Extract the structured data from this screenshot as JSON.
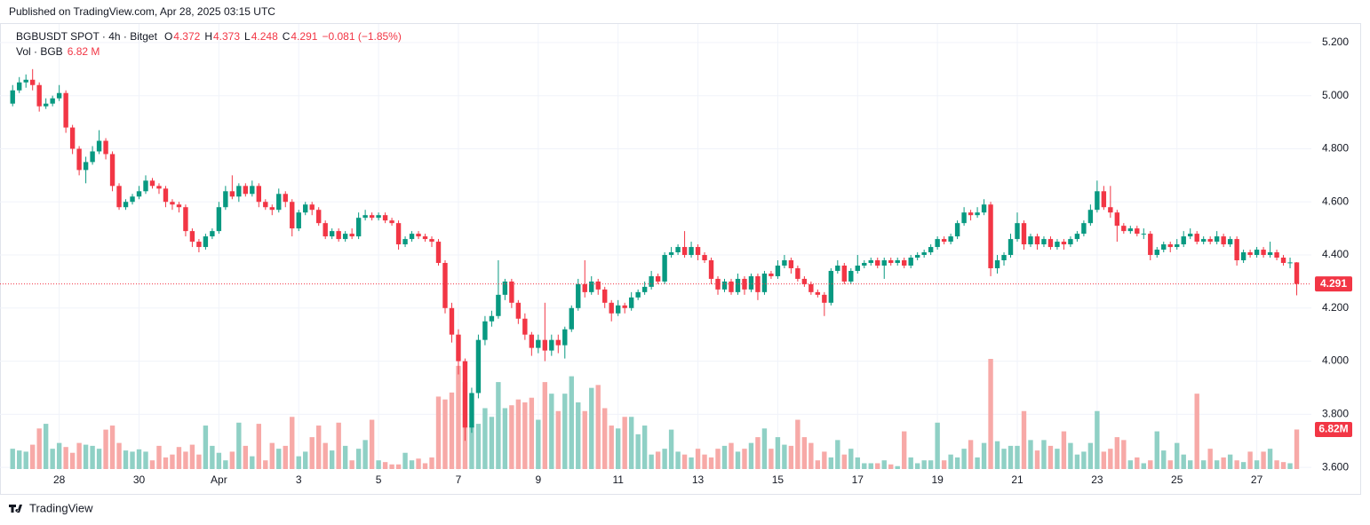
{
  "published": "Published on TradingView.com, Apr 28, 2025 03:15 UTC",
  "logo_text": "TradingView",
  "chart_data": {
    "type": "candlestick",
    "symbol": "BGBUSDT SPOT · 4h · Bitget",
    "ohlc_labels": [
      "O",
      "H",
      "L",
      "C"
    ],
    "change_label": "−0.081 (−1.85%)",
    "volume_title": "Vol · BGB",
    "volume_value_label": "6.82 M",
    "volume_axis_label": "6.82M",
    "last_price_label": "4.291",
    "up_color": "#089981",
    "down_color": "#f23645",
    "volume_up_color": "#8fd0c5",
    "volume_down_color": "#f7a9a7",
    "grid": true,
    "ylim": [
      3.5,
      5.27
    ],
    "yticks": [
      {
        "value": 3.6,
        "label": "3.600"
      },
      {
        "value": 3.8,
        "label": "3.800"
      },
      {
        "value": 4.0,
        "label": "4.000"
      },
      {
        "value": 4.2,
        "label": "4.200"
      },
      {
        "value": 4.4,
        "label": "4.400"
      },
      {
        "value": 4.6,
        "label": "4.600"
      },
      {
        "value": 4.8,
        "label": "4.800"
      },
      {
        "value": 5.0,
        "label": "5.000"
      },
      {
        "value": 5.2,
        "label": "5.200"
      }
    ],
    "xlim": [
      -1.9,
      195.2
    ],
    "xticks": [
      {
        "value": 7,
        "label": "28"
      },
      {
        "value": 19,
        "label": "30"
      },
      {
        "value": 31,
        "label": "Apr"
      },
      {
        "value": 43,
        "label": "3"
      },
      {
        "value": 55,
        "label": "5"
      },
      {
        "value": 67,
        "label": "7"
      },
      {
        "value": 79,
        "label": "9"
      },
      {
        "value": 91,
        "label": "11"
      },
      {
        "value": 103,
        "label": "13"
      },
      {
        "value": 115,
        "label": "15"
      },
      {
        "value": 127,
        "label": "17"
      },
      {
        "value": 139,
        "label": "19"
      },
      {
        "value": 151,
        "label": "21"
      },
      {
        "value": 163,
        "label": "23"
      },
      {
        "value": 175,
        "label": "25"
      },
      {
        "value": 187,
        "label": "27"
      }
    ],
    "open": [
      4.97,
      5.02,
      5.05,
      5.06,
      5.04,
      4.96,
      4.97,
      4.99,
      5.01,
      4.88,
      4.8,
      4.72,
      4.75,
      4.79,
      4.83,
      4.78,
      4.66,
      4.58,
      4.6,
      4.62,
      4.64,
      4.68,
      4.66,
      4.65,
      4.6,
      4.59,
      4.58,
      4.49,
      4.45,
      4.43,
      4.47,
      4.49,
      4.58,
      4.64,
      4.62,
      4.66,
      4.63,
      4.66,
      4.6,
      4.58,
      4.57,
      4.63,
      4.6,
      4.5,
      4.56,
      4.59,
      4.57,
      4.52,
      4.47,
      4.49,
      4.46,
      4.48,
      4.47,
      4.54,
      4.55,
      4.54,
      4.55,
      4.53,
      4.52,
      4.44,
      4.46,
      4.48,
      4.47,
      4.46,
      4.45,
      4.37,
      4.2,
      4.1,
      4.0,
      3.75,
      3.88,
      4.08,
      4.15,
      4.17,
      4.25,
      4.3,
      4.22,
      4.16,
      4.1,
      4.05,
      4.08,
      4.04,
      4.08,
      4.06,
      4.12,
      4.2,
      4.29,
      4.26,
      4.3,
      4.27,
      4.22,
      4.18,
      4.21,
      4.2,
      4.24,
      4.26,
      4.28,
      4.32,
      4.3,
      4.4,
      4.41,
      4.43,
      4.4,
      4.43,
      4.4,
      4.38,
      4.31,
      4.27,
      4.3,
      4.26,
      4.31,
      4.27,
      4.32,
      4.26,
      4.33,
      4.32,
      4.36,
      4.38,
      4.35,
      4.31,
      4.29,
      4.26,
      4.25,
      4.22,
      4.34,
      4.36,
      4.3,
      4.34,
      4.36,
      4.37,
      4.38,
      4.36,
      4.38,
      4.37,
      4.38,
      4.36,
      4.39,
      4.4,
      4.41,
      4.43,
      4.46,
      4.45,
      4.47,
      4.52,
      4.56,
      4.55,
      4.56,
      4.59,
      4.35,
      4.38,
      4.4,
      4.46,
      4.52,
      4.44,
      4.47,
      4.44,
      4.46,
      4.43,
      4.45,
      4.44,
      4.46,
      4.48,
      4.52,
      4.57,
      4.64,
      4.58,
      4.56,
      4.51,
      4.49,
      4.5,
      4.48,
      4.48,
      4.4,
      4.42,
      4.44,
      4.43,
      4.44,
      4.47,
      4.48,
      4.45,
      4.46,
      4.45,
      4.47,
      4.44,
      4.46,
      4.38,
      4.41,
      4.4,
      4.42,
      4.4,
      4.41,
      4.39,
      4.37,
      4.372
    ],
    "high": [
      5.04,
      5.07,
      5.08,
      5.1,
      5.05,
      4.99,
      5.0,
      5.04,
      5.02,
      4.89,
      4.81,
      4.77,
      4.81,
      4.87,
      4.84,
      4.79,
      4.67,
      4.61,
      4.63,
      4.66,
      4.7,
      4.69,
      4.67,
      4.66,
      4.61,
      4.6,
      4.59,
      4.5,
      4.46,
      4.48,
      4.5,
      4.6,
      4.66,
      4.7,
      4.67,
      4.67,
      4.68,
      4.67,
      4.61,
      4.59,
      4.65,
      4.64,
      4.61,
      4.57,
      4.6,
      4.6,
      4.58,
      4.53,
      4.5,
      4.5,
      4.49,
      4.5,
      4.56,
      4.57,
      4.56,
      4.56,
      4.56,
      4.54,
      4.53,
      4.47,
      4.49,
      4.49,
      4.48,
      4.47,
      4.46,
      4.38,
      4.22,
      4.12,
      4.01,
      3.9,
      4.1,
      4.17,
      4.19,
      4.38,
      4.31,
      4.31,
      4.23,
      4.18,
      4.11,
      4.1,
      4.22,
      4.1,
      4.1,
      4.13,
      4.21,
      4.31,
      4.38,
      4.32,
      4.31,
      4.28,
      4.23,
      4.23,
      4.22,
      4.26,
      4.27,
      4.3,
      4.34,
      4.33,
      4.41,
      4.43,
      4.44,
      4.49,
      4.45,
      4.44,
      4.41,
      4.39,
      4.32,
      4.31,
      4.31,
      4.33,
      4.32,
      4.33,
      4.33,
      4.34,
      4.34,
      4.38,
      4.4,
      4.39,
      4.36,
      4.32,
      4.3,
      4.27,
      4.26,
      4.35,
      4.38,
      4.37,
      4.35,
      4.4,
      4.38,
      4.39,
      4.39,
      4.39,
      4.39,
      4.39,
      4.39,
      4.4,
      4.41,
      4.42,
      4.44,
      4.47,
      4.47,
      4.48,
      4.53,
      4.58,
      4.57,
      4.58,
      4.61,
      4.6,
      4.4,
      4.41,
      4.48,
      4.56,
      4.53,
      4.48,
      4.48,
      4.47,
      4.47,
      4.46,
      4.46,
      4.47,
      4.49,
      4.53,
      4.59,
      4.68,
      4.66,
      4.66,
      4.57,
      4.52,
      4.51,
      4.51,
      4.5,
      4.49,
      4.43,
      4.45,
      4.45,
      4.46,
      4.49,
      4.5,
      4.49,
      4.47,
      4.47,
      4.49,
      4.48,
      4.47,
      4.47,
      4.42,
      4.42,
      4.43,
      4.43,
      4.45,
      4.42,
      4.4,
      4.39,
      4.373
    ],
    "low": [
      4.96,
      5.01,
      5.03,
      5.02,
      4.94,
      4.95,
      4.96,
      4.98,
      4.86,
      4.78,
      4.7,
      4.67,
      4.74,
      4.78,
      4.76,
      4.64,
      4.57,
      4.57,
      4.59,
      4.61,
      4.63,
      4.65,
      4.63,
      4.58,
      4.57,
      4.56,
      4.47,
      4.43,
      4.41,
      4.42,
      4.46,
      4.48,
      4.57,
      4.61,
      4.6,
      4.62,
      4.62,
      4.58,
      4.57,
      4.55,
      4.56,
      4.58,
      4.47,
      4.49,
      4.55,
      4.55,
      4.51,
      4.46,
      4.46,
      4.45,
      4.45,
      4.46,
      4.46,
      4.53,
      4.53,
      4.53,
      4.52,
      4.51,
      4.42,
      4.43,
      4.45,
      4.46,
      4.45,
      4.43,
      4.36,
      4.18,
      4.07,
      3.95,
      3.7,
      3.73,
      3.86,
      4.06,
      4.13,
      4.16,
      4.23,
      4.2,
      4.14,
      4.08,
      4.02,
      4.03,
      4.0,
      4.02,
      4.03,
      4.01,
      4.11,
      4.19,
      4.24,
      4.25,
      4.25,
      4.2,
      4.15,
      4.17,
      4.18,
      4.19,
      4.23,
      4.25,
      4.27,
      4.29,
      4.29,
      4.39,
      4.4,
      4.39,
      4.39,
      4.38,
      4.37,
      4.29,
      4.25,
      4.26,
      4.25,
      4.25,
      4.25,
      4.26,
      4.23,
      4.25,
      4.31,
      4.31,
      4.35,
      4.33,
      4.3,
      4.28,
      4.25,
      4.24,
      4.17,
      4.21,
      4.33,
      4.29,
      4.29,
      4.33,
      4.35,
      4.36,
      4.35,
      4.31,
      4.36,
      4.36,
      4.35,
      4.35,
      4.38,
      4.39,
      4.4,
      4.42,
      4.44,
      4.44,
      4.46,
      4.51,
      4.53,
      4.54,
      4.55,
      4.32,
      4.33,
      4.36,
      4.39,
      4.45,
      4.42,
      4.43,
      4.42,
      4.43,
      4.42,
      4.42,
      4.42,
      4.43,
      4.45,
      4.47,
      4.51,
      4.56,
      4.57,
      4.54,
      4.45,
      4.48,
      4.48,
      4.47,
      4.46,
      4.38,
      4.39,
      4.41,
      4.41,
      4.42,
      4.43,
      4.46,
      4.44,
      4.44,
      4.44,
      4.44,
      4.43,
      4.43,
      4.36,
      4.37,
      4.39,
      4.39,
      4.39,
      4.39,
      4.38,
      4.36,
      4.35,
      4.248
    ],
    "close": [
      5.02,
      5.05,
      5.06,
      5.04,
      4.96,
      4.97,
      4.99,
      5.01,
      4.88,
      4.8,
      4.72,
      4.75,
      4.79,
      4.83,
      4.78,
      4.66,
      4.58,
      4.6,
      4.62,
      4.64,
      4.68,
      4.66,
      4.65,
      4.6,
      4.59,
      4.58,
      4.49,
      4.45,
      4.43,
      4.47,
      4.49,
      4.58,
      4.64,
      4.62,
      4.66,
      4.63,
      4.66,
      4.6,
      4.58,
      4.57,
      4.63,
      4.6,
      4.5,
      4.56,
      4.59,
      4.57,
      4.52,
      4.47,
      4.49,
      4.46,
      4.48,
      4.47,
      4.54,
      4.55,
      4.54,
      4.55,
      4.53,
      4.52,
      4.44,
      4.46,
      4.48,
      4.47,
      4.46,
      4.45,
      4.37,
      4.2,
      4.1,
      4.0,
      3.75,
      3.88,
      4.08,
      4.15,
      4.17,
      4.25,
      4.3,
      4.22,
      4.16,
      4.1,
      4.05,
      4.08,
      4.04,
      4.08,
      4.06,
      4.12,
      4.2,
      4.29,
      4.26,
      4.3,
      4.27,
      4.22,
      4.18,
      4.21,
      4.2,
      4.24,
      4.26,
      4.28,
      4.32,
      4.3,
      4.4,
      4.41,
      4.43,
      4.4,
      4.43,
      4.4,
      4.38,
      4.31,
      4.27,
      4.3,
      4.26,
      4.31,
      4.27,
      4.32,
      4.26,
      4.33,
      4.32,
      4.36,
      4.38,
      4.35,
      4.31,
      4.29,
      4.26,
      4.25,
      4.22,
      4.34,
      4.36,
      4.3,
      4.34,
      4.36,
      4.37,
      4.38,
      4.36,
      4.38,
      4.37,
      4.38,
      4.36,
      4.39,
      4.4,
      4.41,
      4.43,
      4.46,
      4.45,
      4.47,
      4.52,
      4.56,
      4.55,
      4.56,
      4.59,
      4.35,
      4.38,
      4.4,
      4.46,
      4.52,
      4.44,
      4.47,
      4.44,
      4.46,
      4.43,
      4.45,
      4.44,
      4.46,
      4.48,
      4.52,
      4.57,
      4.64,
      4.58,
      4.56,
      4.51,
      4.49,
      4.5,
      4.48,
      4.48,
      4.4,
      4.42,
      4.44,
      4.43,
      4.44,
      4.47,
      4.48,
      4.45,
      4.46,
      4.45,
      4.47,
      4.44,
      4.46,
      4.38,
      4.41,
      4.4,
      4.42,
      4.4,
      4.41,
      4.39,
      4.37,
      4.372,
      4.291
    ],
    "volume": [
      3.5,
      3.2,
      3.0,
      4.2,
      7.0,
      7.8,
      3.5,
      4.5,
      3.8,
      2.8,
      4.5,
      4.2,
      4.0,
      3.5,
      6.8,
      7.5,
      4.5,
      3.2,
      3.0,
      3.4,
      3.0,
      1.5,
      4.0,
      2.0,
      2.5,
      3.8,
      3.0,
      4.2,
      2.5,
      7.5,
      4.0,
      2.8,
      1.5,
      3.0,
      8.0,
      4.0,
      2.2,
      7.8,
      1.5,
      4.5,
      3.5,
      4.0,
      9.0,
      2.2,
      3.0,
      5.5,
      7.5,
      4.5,
      3.2,
      8.0,
      4.0,
      1.5,
      3.5,
      5.0,
      8.5,
      1.5,
      1.2,
      0.8,
      0.8,
      2.8,
      1.5,
      1.8,
      1.0,
      2.0,
      12.5,
      12.0,
      13.2,
      17.8,
      15.0,
      7.5,
      7.8,
      10.5,
      9.0,
      15.0,
      10.5,
      11.0,
      12.0,
      11.5,
      12.3,
      8.5,
      15.0,
      13.0,
      10.0,
      13.0,
      16.0,
      11.5,
      10.0,
      14.0,
      14.5,
      10.5,
      7.5,
      7.0,
      9.0,
      9.0,
      6.0,
      7.5,
      2.5,
      3.0,
      3.5,
      6.8,
      3.0,
      2.5,
      2.0,
      3.5,
      2.5,
      2.0,
      3.5,
      4.0,
      4.5,
      3.0,
      3.5,
      4.5,
      5.5,
      7.0,
      3.5,
      5.5,
      4.2,
      4.0,
      8.5,
      5.5,
      4.5,
      1.5,
      3.0,
      2.0,
      5.0,
      2.5,
      3.5,
      2.0,
      1.0,
      1.0,
      1.0,
      1.5,
      0.8,
      0.5,
      6.5,
      2.0,
      1.0,
      1.5,
      1.5,
      8.0,
      1.5,
      2.5,
      2.0,
      3.5,
      5.0,
      2.0,
      4.5,
      19.0,
      4.8,
      3.5,
      4.0,
      4.0,
      10.0,
      5.0,
      3.2,
      5.0,
      4.0,
      3.5,
      6.5,
      4.5,
      2.5,
      3.0,
      4.5,
      10.0,
      3.0,
      3.5,
      5.5,
      5.0,
      1.5,
      2.0,
      1.0,
      1.5,
      6.5,
      3.2,
      1.5,
      4.5,
      2.5,
      1.5,
      13.0,
      1.5,
      3.5,
      1.5,
      2.0,
      2.5,
      1.5,
      1.2,
      3.0,
      1.5,
      3.0,
      3.5,
      1.5,
      1.2,
      1.0,
      6.82
    ]
  }
}
